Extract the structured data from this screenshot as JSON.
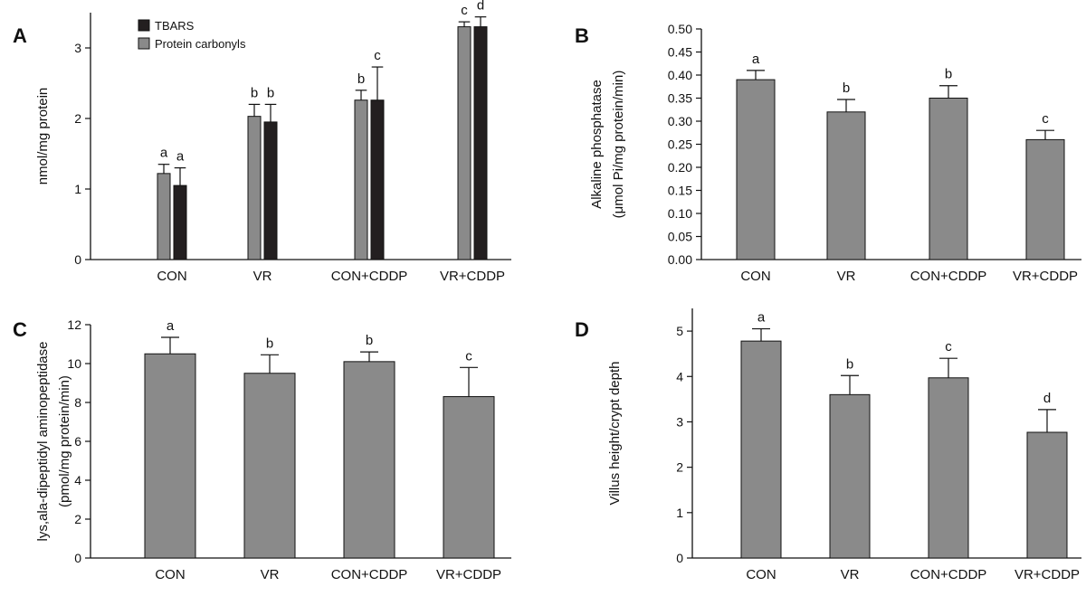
{
  "colors": {
    "gray": "#8a8a8a",
    "black": "#231f20",
    "axis": "#111111"
  },
  "chart_data": [
    {
      "panel": "A",
      "type": "bar",
      "title": "",
      "xlabel": "",
      "ylabel": [
        "nmol/mg protein"
      ],
      "categories": [
        "CON",
        "VR",
        "CON+CDDP",
        "VR+CDDP"
      ],
      "ylim": [
        0,
        3.5
      ],
      "yticks": [
        0,
        1,
        2,
        3
      ],
      "tick_decimals": 0,
      "grid": false,
      "legend_position": "top-left",
      "series": [
        {
          "name": "Protein carbonyls",
          "color": "#8a8a8a",
          "values": [
            1.22,
            2.03,
            2.26,
            3.3
          ],
          "errors": [
            0.13,
            0.17,
            0.14,
            0.07
          ],
          "labels": [
            "a",
            "b",
            "b",
            "c"
          ]
        },
        {
          "name": "TBARS",
          "color": "#231f20",
          "values": [
            1.05,
            1.95,
            2.26,
            3.3
          ],
          "errors": [
            0.25,
            0.25,
            0.47,
            0.14
          ],
          "labels": [
            "a",
            "b",
            "c",
            "d"
          ]
        }
      ],
      "legend_order": [
        1,
        0
      ]
    },
    {
      "panel": "B",
      "type": "bar",
      "title": "",
      "xlabel": "",
      "ylabel": [
        "Alkaline phosphatase",
        "(μmol Pi/mg protein/min)"
      ],
      "categories": [
        "CON",
        "VR",
        "CON+CDDP",
        "VR+CDDP"
      ],
      "ylim": [
        0,
        0.5
      ],
      "yticks": [
        0,
        0.05,
        0.1,
        0.15,
        0.2,
        0.25,
        0.3,
        0.35,
        0.4,
        0.45,
        0.5
      ],
      "tick_decimals": 2,
      "grid": false,
      "series": [
        {
          "color": "#8a8a8a",
          "values": [
            0.39,
            0.32,
            0.35,
            0.26
          ],
          "errors": [
            0.02,
            0.027,
            0.027,
            0.02
          ],
          "labels": [
            "a",
            "b",
            "b",
            "c"
          ]
        }
      ]
    },
    {
      "panel": "C",
      "type": "bar",
      "title": "",
      "xlabel": "",
      "ylabel": [
        "lys,ala-dipeptidyl aminopeptidase",
        "(pmol/mg protein/min)"
      ],
      "categories": [
        "CON",
        "VR",
        "CON+CDDP",
        "VR+CDDP"
      ],
      "ylim": [
        0,
        12
      ],
      "yticks": [
        0,
        2,
        4,
        6,
        8,
        10,
        12
      ],
      "tick_decimals": 0,
      "grid": false,
      "series": [
        {
          "color": "#8a8a8a",
          "values": [
            10.5,
            9.5,
            10.1,
            8.3
          ],
          "errors": [
            0.85,
            0.95,
            0.5,
            1.5
          ],
          "labels": [
            "a",
            "b",
            "b",
            "c"
          ]
        }
      ]
    },
    {
      "panel": "D",
      "type": "bar",
      "title": "",
      "xlabel": "",
      "ylabel": [
        "Villus height/crypt depth"
      ],
      "categories": [
        "CON",
        "VR",
        "CON+CDDP",
        "VR+CDDP"
      ],
      "ylim": [
        0,
        5.5
      ],
      "yticks": [
        0,
        1,
        2,
        3,
        4,
        5
      ],
      "tick_decimals": 0,
      "grid": false,
      "series": [
        {
          "color": "#8a8a8a",
          "values": [
            4.78,
            3.6,
            3.97,
            2.77
          ],
          "errors": [
            0.27,
            0.42,
            0.43,
            0.5
          ],
          "labels": [
            "a",
            "b",
            "c",
            "d"
          ]
        }
      ]
    }
  ]
}
